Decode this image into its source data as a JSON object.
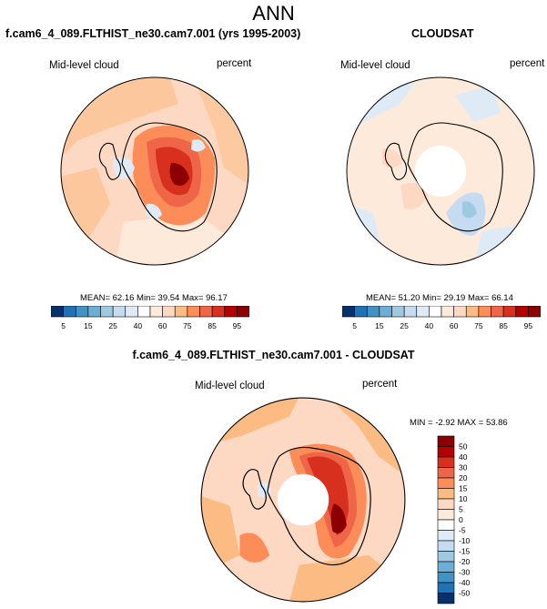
{
  "page_title": "ANN",
  "colors": {
    "deep_red": "#8b0000",
    "red": "#d7301f",
    "orange_red": "#ef6548",
    "salmon": "#fc8d59",
    "light_salmon": "#fdbb84",
    "peach": "#fdd9c4",
    "pale_peach": "#fdeadb",
    "pale_blue": "#deebf7",
    "light_blue": "#c6dbef",
    "mid_blue": "#9ecae1",
    "blue": "#4292c6",
    "dark_blue": "#08306b"
  },
  "panels": [
    {
      "title": "f.cam6_4_089.FLTHIST_ne30.cam7.001 (yrs 1995-2003)",
      "variable": "Mid-level cloud",
      "units": "percent",
      "stats": "MEAN= 62.16  Min= 39.54  Max= 96.17",
      "colorbar_labels": [
        "5",
        "15",
        "25",
        "40",
        "60",
        "75",
        "85",
        "95"
      ]
    },
    {
      "title": "CLOUDSAT",
      "variable": "Mid-level cloud",
      "units": "percent",
      "stats": "MEAN= 51.20  Min= 29.19  Max= 66.14",
      "colorbar_labels": [
        "5",
        "15",
        "25",
        "40",
        "60",
        "75",
        "85",
        "95"
      ]
    },
    {
      "title": "f.cam6_4_089.FLTHIST_ne30.cam7.001 - CLOUDSAT",
      "variable": "Mid-level cloud",
      "units": "percent",
      "stats": "MIN = -2.92 MAX =  53.86",
      "colorbar_labels": [
        "50",
        "40",
        "30",
        "20",
        "15",
        "10",
        "5",
        "0",
        "-5",
        "-10",
        "-15",
        "-20",
        "-30",
        "-40",
        "-50"
      ]
    }
  ]
}
